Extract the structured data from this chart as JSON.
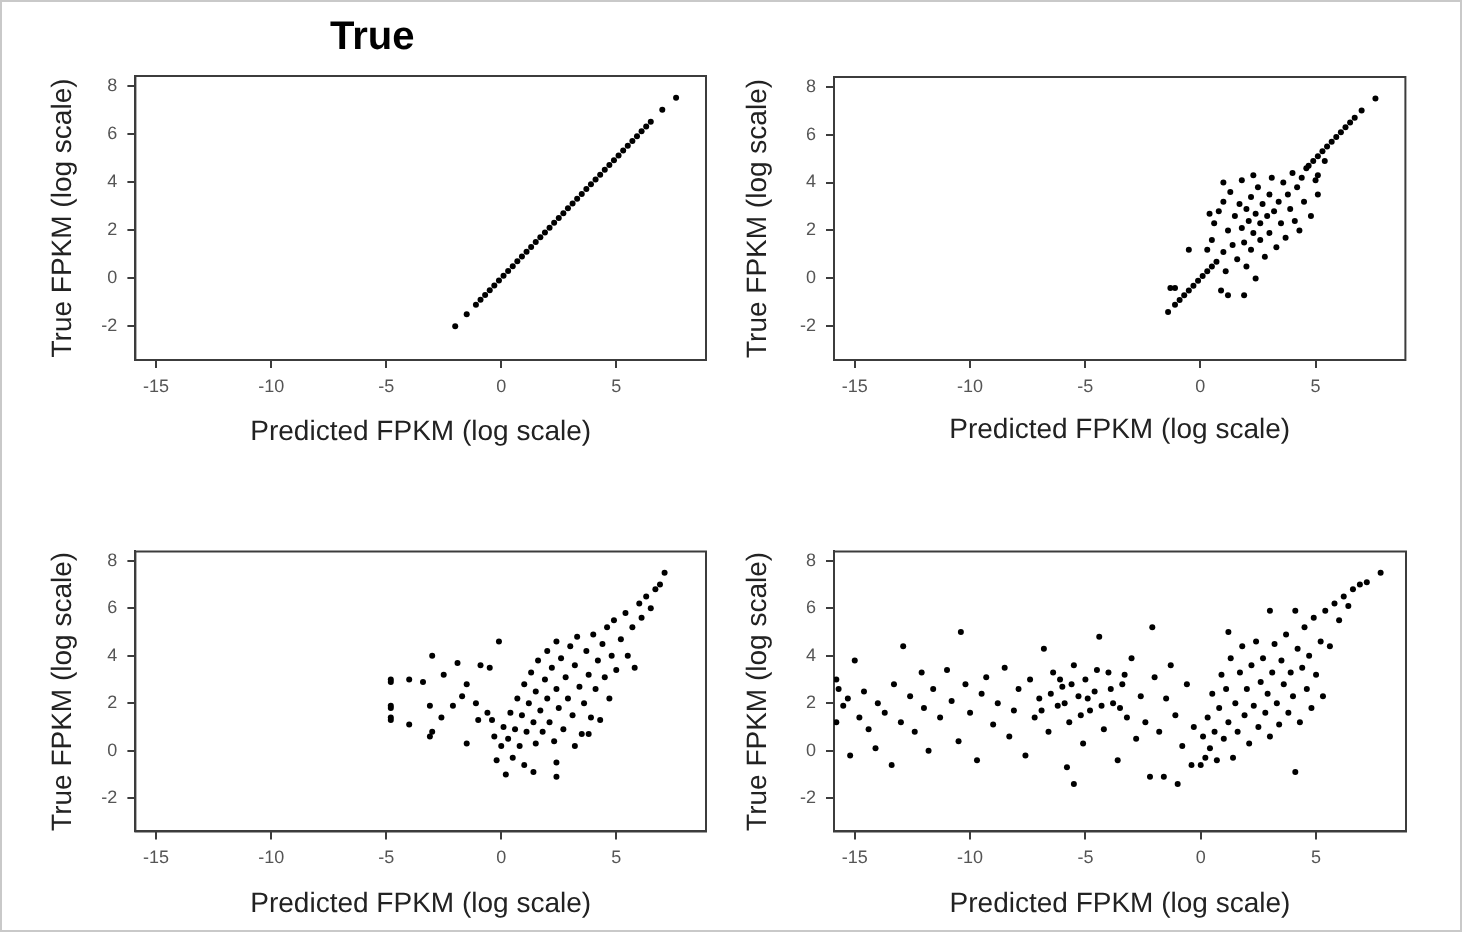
{
  "chart_data": [
    {
      "type": "scatter",
      "title": "True",
      "xlabel": "Predicted FPKM (log scale)",
      "ylabel": "True FPKM (log scale)",
      "xlim": [
        -15.9,
        8.9
      ],
      "ylim": [
        -3.4,
        8.4
      ],
      "xticks": [
        -15,
        -10,
        -5,
        0,
        5
      ],
      "yticks": [
        -2,
        0,
        2,
        4,
        6,
        8
      ],
      "marker": "circle",
      "color": "#000000",
      "x": [
        -2.0,
        -1.5,
        -1.1,
        -0.9,
        -0.7,
        -0.5,
        -0.3,
        -0.1,
        0.1,
        0.3,
        0.5,
        0.7,
        0.9,
        1.1,
        1.3,
        1.5,
        1.7,
        1.9,
        2.1,
        2.3,
        2.5,
        2.7,
        2.9,
        3.1,
        3.3,
        3.5,
        3.7,
        3.9,
        4.1,
        4.3,
        4.5,
        4.7,
        4.9,
        5.1,
        5.3,
        5.5,
        5.7,
        5.9,
        6.1,
        6.3,
        6.5,
        7.0,
        7.6
      ],
      "values": [
        -2.0,
        -1.5,
        -1.1,
        -0.9,
        -0.7,
        -0.5,
        -0.3,
        -0.1,
        0.1,
        0.3,
        0.5,
        0.7,
        0.9,
        1.1,
        1.3,
        1.5,
        1.7,
        1.9,
        2.1,
        2.3,
        2.5,
        2.7,
        2.9,
        3.1,
        3.3,
        3.5,
        3.7,
        3.9,
        4.1,
        4.3,
        4.5,
        4.7,
        4.9,
        5.1,
        5.3,
        5.5,
        5.7,
        5.9,
        6.1,
        6.3,
        6.5,
        7.0,
        7.5
      ]
    },
    {
      "type": "scatter",
      "xlabel": "Predicted FPKM (log scale)",
      "ylabel": "True FPKM (log scale)",
      "xlim": [
        -15.9,
        8.9
      ],
      "ylim": [
        -3.4,
        8.4
      ],
      "xticks": [
        -15,
        -10,
        -5,
        0,
        5
      ],
      "yticks": [
        -2,
        0,
        2,
        4,
        6,
        8
      ],
      "marker": "circle",
      "color": "#000000",
      "x": [
        -1.4,
        -1.1,
        -0.9,
        -0.7,
        -0.5,
        -0.3,
        -0.1,
        0.1,
        0.3,
        0.5,
        0.7,
        4.7,
        4.9,
        5.1,
        5.3,
        5.5,
        5.7,
        5.9,
        6.1,
        6.3,
        6.5,
        6.7,
        7.0,
        7.6,
        -1.3,
        -1.1,
        -0.5,
        0.3,
        0.5,
        0.4,
        0.6,
        0.8,
        1.0,
        1.0,
        1.0,
        1.1,
        0.9,
        1.2,
        1.2,
        1.3,
        1.4,
        1.5,
        1.6,
        1.7,
        1.8,
        1.8,
        1.9,
        1.9,
        2.0,
        2.0,
        2.1,
        2.2,
        2.2,
        2.3,
        2.3,
        2.4,
        2.4,
        2.5,
        2.6,
        2.6,
        2.7,
        2.8,
        2.9,
        3.0,
        3.0,
        3.1,
        3.2,
        3.3,
        3.4,
        3.5,
        3.6,
        3.7,
        3.8,
        3.9,
        4.0,
        4.1,
        4.2,
        4.3,
        4.4,
        4.5,
        4.6,
        4.8,
        5.0,
        5.1,
        5.1,
        5.4
      ],
      "values": [
        -1.4,
        -1.1,
        -0.9,
        -0.7,
        -0.5,
        -0.3,
        -0.1,
        0.1,
        0.3,
        0.5,
        0.7,
        4.7,
        4.9,
        5.1,
        5.3,
        5.5,
        5.7,
        5.9,
        6.1,
        6.3,
        6.5,
        6.7,
        7.0,
        7.5,
        -0.4,
        -0.4,
        1.2,
        1.2,
        1.6,
        2.7,
        2.3,
        2.8,
        3.2,
        4.0,
        1.1,
        0.3,
        -0.5,
        -0.7,
        2.0,
        3.6,
        1.4,
        2.6,
        0.8,
        3.1,
        2.1,
        4.1,
        1.5,
        -0.7,
        2.9,
        0.5,
        2.4,
        3.4,
        1.2,
        1.9,
        4.3,
        2.7,
        0.0,
        3.8,
        1.6,
        2.3,
        3.1,
        0.9,
        2.6,
        3.5,
        1.9,
        4.2,
        2.8,
        1.3,
        3.2,
        2.3,
        4.0,
        1.7,
        3.5,
        2.9,
        4.4,
        2.4,
        3.8,
        2.0,
        4.2,
        3.2,
        4.6,
        2.6,
        4.1,
        3.5,
        4.3,
        4.9
      ]
    },
    {
      "type": "scatter",
      "xlabel": "Predicted FPKM (log scale)",
      "ylabel": "True FPKM (log scale)",
      "xlim": [
        -15.9,
        8.9
      ],
      "ylim": [
        -3.4,
        8.4
      ],
      "xticks": [
        -15,
        -10,
        -5,
        0,
        5
      ],
      "yticks": [
        -2,
        0,
        2,
        4,
        6,
        8
      ],
      "marker": "circle",
      "color": "#000000",
      "x": [
        -4.8,
        -4.8,
        -4.8,
        -4.8,
        -4.8,
        -4.8,
        -3.0,
        -4.0,
        -3.4,
        -2.5,
        -1.9,
        -1.5,
        -0.9,
        -0.5,
        -0.1,
        -3.1,
        -2.6,
        -3.0,
        -3.1,
        -4.0,
        -1.5,
        -2.1,
        -1.7,
        -1.1,
        -0.6,
        -1.0,
        -0.4,
        3.8,
        3.2,
        2.4,
        2.4,
        1.4,
        -0.3,
        -0.2,
        0.0,
        0.1,
        0.2,
        0.3,
        0.4,
        0.5,
        0.6,
        0.7,
        0.8,
        0.9,
        1.0,
        1.0,
        1.1,
        1.2,
        1.3,
        1.4,
        1.5,
        1.5,
        1.6,
        1.7,
        1.8,
        1.9,
        2.0,
        2.0,
        2.1,
        2.2,
        2.3,
        2.4,
        2.4,
        2.5,
        2.6,
        2.7,
        2.8,
        2.9,
        3.0,
        3.1,
        3.2,
        3.3,
        3.4,
        3.5,
        3.6,
        3.7,
        3.8,
        3.9,
        4.0,
        4.1,
        4.2,
        4.3,
        4.4,
        4.5,
        4.6,
        4.7,
        4.8,
        4.9,
        5.0,
        5.2,
        5.4,
        5.5,
        5.7,
        5.8,
        6.0,
        6.1,
        6.3,
        6.5,
        6.7,
        6.9,
        7.1
      ],
      "values": [
        3.0,
        2.9,
        1.9,
        1.8,
        1.4,
        1.3,
        4.0,
        3.0,
        2.9,
        3.2,
        3.7,
        2.8,
        3.6,
        3.5,
        4.6,
        1.9,
        1.4,
        0.8,
        0.6,
        1.1,
        0.3,
        1.9,
        2.3,
        2.0,
        1.6,
        1.3,
        1.3,
        0.7,
        0.2,
        -0.5,
        -1.1,
        -0.9,
        0.6,
        -0.4,
        0.2,
        1.0,
        -1.0,
        0.5,
        1.6,
        -0.3,
        0.9,
        2.2,
        0.2,
        1.5,
        2.8,
        -0.6,
        0.8,
        2.0,
        3.3,
        1.2,
        0.3,
        2.5,
        3.8,
        1.7,
        0.8,
        3.0,
        2.2,
        4.2,
        1.2,
        3.5,
        0.4,
        2.6,
        4.6,
        1.8,
        3.9,
        0.9,
        3.1,
        2.2,
        4.4,
        1.5,
        3.6,
        4.8,
        2.7,
        0.7,
        2.0,
        4.2,
        3.2,
        1.4,
        4.9,
        2.6,
        3.8,
        1.3,
        4.5,
        3.1,
        5.2,
        2.2,
        4.0,
        5.5,
        3.4,
        4.7,
        5.8,
        4.0,
        5.2,
        3.5,
        6.2,
        5.6,
        6.5,
        6.0,
        6.8,
        7.0,
        7.5
      ]
    },
    {
      "type": "scatter",
      "xlabel": "Predicted FPKM (log scale)",
      "ylabel": "True FPKM (log scale)",
      "xlim": [
        -15.9,
        8.9
      ],
      "ylim": [
        -3.4,
        8.4
      ],
      "xticks": [
        -15,
        -10,
        -5,
        0,
        5
      ],
      "yticks": [
        -2,
        0,
        2,
        4,
        6,
        8
      ],
      "marker": "circle",
      "color": "#000000",
      "x": [
        -15.8,
        -15.8,
        -15.7,
        -15.5,
        -15.3,
        -15.2,
        -15.0,
        -14.8,
        -14.6,
        -14.4,
        -14.1,
        -14.0,
        -13.7,
        -13.4,
        -13.3,
        -13.0,
        -12.9,
        -12.6,
        -12.4,
        -12.1,
        -12.0,
        -11.8,
        -11.6,
        -11.3,
        -11.0,
        -10.8,
        -10.5,
        -10.4,
        -10.2,
        -10.0,
        -9.7,
        -9.5,
        -9.3,
        -9.0,
        -8.8,
        -8.5,
        -8.3,
        -8.1,
        -7.9,
        -7.6,
        -7.4,
        -7.2,
        -7.0,
        -6.8,
        -6.6,
        -6.4,
        -6.2,
        -6.0,
        -5.8,
        -5.7,
        -5.5,
        -5.5,
        -5.3,
        -5.1,
        -5.0,
        -4.8,
        -4.6,
        -4.4,
        -4.2,
        -4.0,
        -3.8,
        -3.6,
        -3.4,
        -3.2,
        -3.0,
        -2.8,
        -2.6,
        -2.4,
        -2.1,
        -2.2,
        -2.0,
        -1.8,
        -1.6,
        -1.5,
        -1.3,
        -1.1,
        -1.0,
        -0.8,
        -0.6,
        -0.4,
        -0.3,
        -6.9,
        -6.5,
        -6.1,
        -5.9,
        -5.6,
        -5.2,
        -4.9,
        -4.5,
        -4.3,
        -3.9,
        -3.5,
        -3.3,
        0.0,
        0.1,
        0.2,
        0.3,
        0.4,
        0.5,
        0.6,
        0.7,
        0.8,
        0.9,
        1.0,
        1.1,
        1.2,
        1.2,
        1.3,
        1.4,
        1.5,
        1.6,
        1.7,
        1.8,
        1.9,
        2.0,
        2.1,
        2.2,
        2.3,
        2.4,
        2.5,
        2.6,
        2.7,
        2.8,
        2.9,
        3.0,
        3.0,
        3.1,
        3.2,
        3.3,
        3.4,
        3.5,
        3.6,
        3.7,
        3.8,
        3.9,
        4.0,
        4.1,
        4.1,
        4.2,
        4.3,
        4.4,
        4.5,
        4.6,
        4.7,
        4.8,
        4.9,
        5.0,
        5.2,
        5.3,
        5.4,
        5.6,
        5.8,
        6.0,
        6.2,
        6.4,
        6.6,
        6.9,
        7.2,
        7.8
      ],
      "values": [
        3.0,
        1.2,
        2.6,
        1.9,
        2.2,
        -0.2,
        3.8,
        1.4,
        2.5,
        0.9,
        0.1,
        2.0,
        1.6,
        -0.6,
        2.8,
        1.2,
        4.4,
        2.3,
        0.8,
        3.3,
        1.8,
        0.0,
        2.6,
        1.4,
        3.4,
        2.1,
        0.4,
        5.0,
        2.8,
        1.6,
        -0.4,
        2.4,
        3.1,
        1.1,
        2.0,
        3.5,
        0.6,
        1.7,
        2.6,
        -0.2,
        3.0,
        1.4,
        2.2,
        4.3,
        0.8,
        3.3,
        1.9,
        2.7,
        -0.7,
        1.2,
        3.6,
        -1.4,
        2.3,
        0.3,
        3.0,
        1.7,
        2.5,
        4.8,
        0.9,
        3.3,
        2.0,
        -0.4,
        2.8,
        1.4,
        3.9,
        0.5,
        2.3,
        1.2,
        5.2,
        -1.1,
        3.1,
        0.8,
        -1.1,
        2.2,
        3.6,
        1.5,
        -1.4,
        0.2,
        2.8,
        -0.6,
        1.0,
        1.7,
        2.4,
        3.0,
        2.0,
        2.8,
        1.5,
        2.2,
        3.4,
        1.9,
        2.6,
        1.8,
        3.2,
        -0.6,
        0.6,
        -0.3,
        1.4,
        0.1,
        2.4,
        0.8,
        -0.4,
        1.8,
        3.2,
        0.5,
        2.6,
        5.0,
        1.2,
        3.9,
        -0.3,
        2.0,
        0.8,
        3.3,
        4.4,
        1.5,
        2.6,
        0.3,
        3.6,
        1.9,
        4.6,
        1.0,
        2.9,
        3.9,
        1.6,
        2.4,
        5.9,
        0.6,
        3.3,
        4.5,
        2.0,
        1.1,
        3.8,
        2.8,
        4.9,
        1.6,
        3.3,
        2.3,
        5.9,
        -0.9,
        4.3,
        1.2,
        3.5,
        5.2,
        2.6,
        4.0,
        1.8,
        5.6,
        3.2,
        4.6,
        2.3,
        5.9,
        4.4,
        6.2,
        5.5,
        6.5,
        6.1,
        6.8,
        7.0,
        7.1,
        7.5
      ]
    }
  ]
}
